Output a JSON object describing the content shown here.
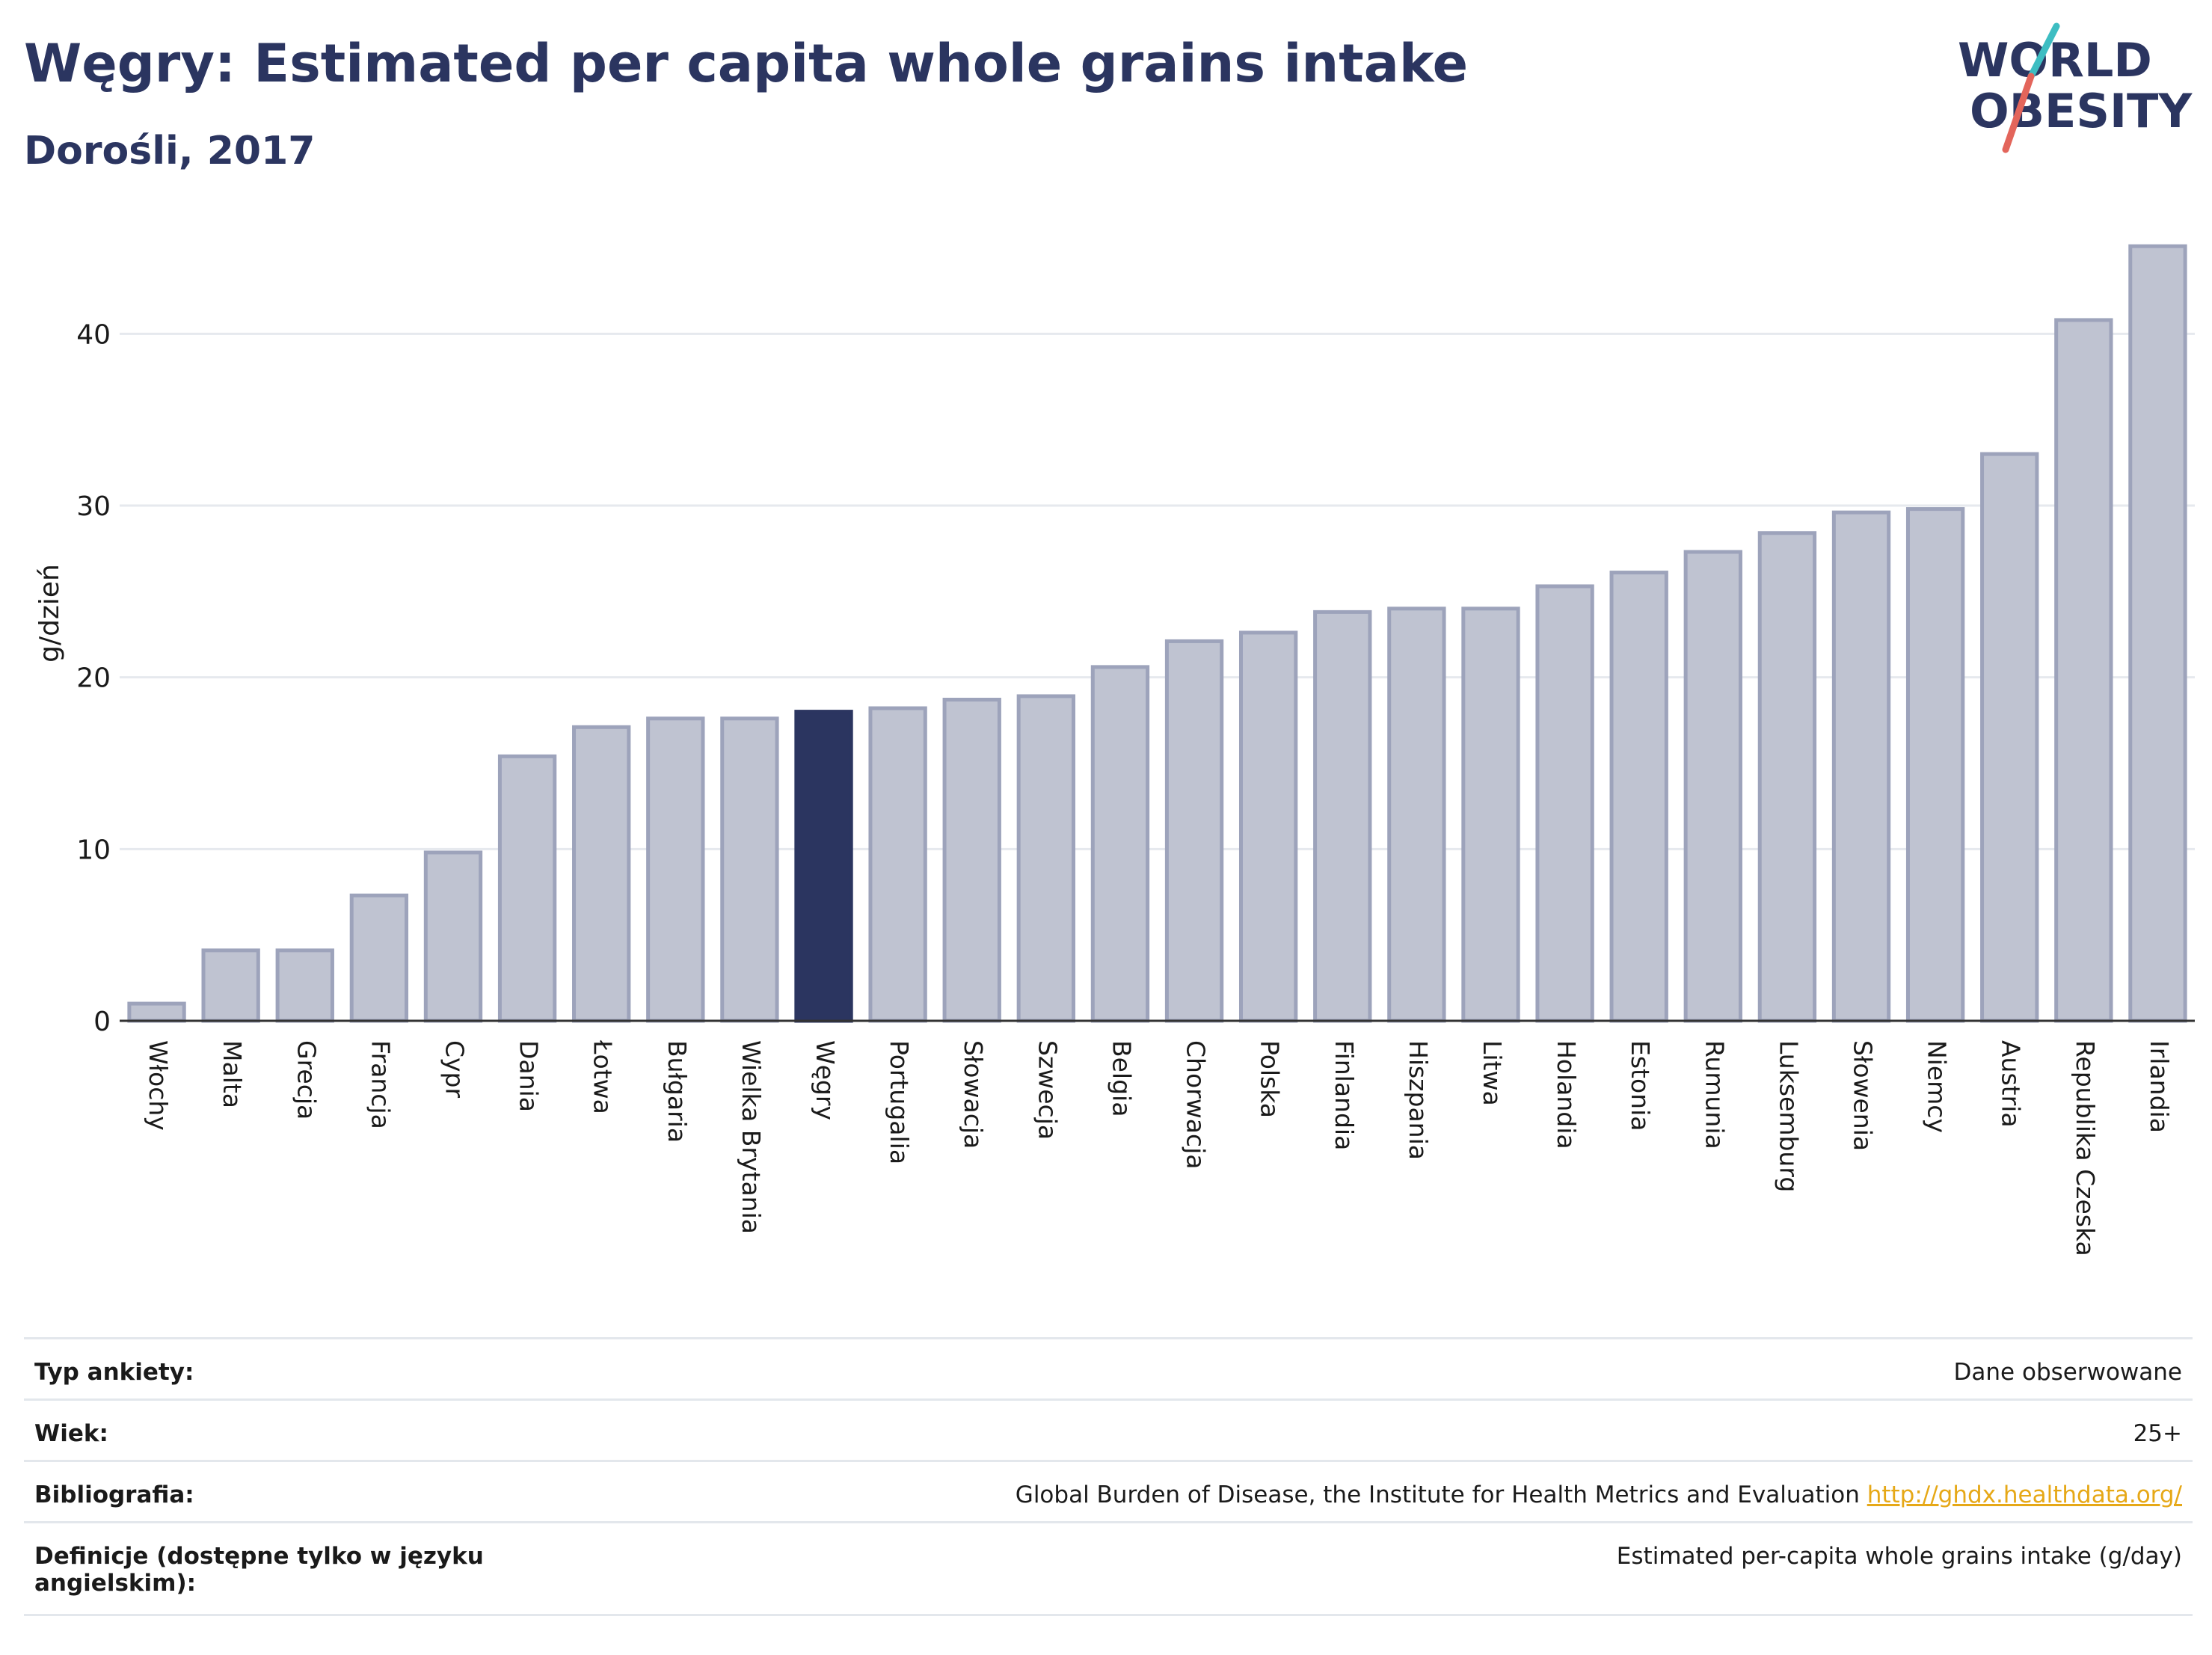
{
  "header": {
    "title": "Węgry: Estimated per capita whole grains intake",
    "subtitle": "Dorośli, 2017"
  },
  "logo": {
    "line1": "WORLD",
    "line2": "OBESITY"
  },
  "colors": {
    "bar": "#bfc3d1",
    "bar_stroke": "#9da3bb",
    "highlight": "#2b3560",
    "grid": "#e6e9ee",
    "axis": "#333333"
  },
  "chart_data": {
    "type": "bar",
    "ylabel": "g/dzień",
    "ylim": [
      0,
      45.5
    ],
    "yticks": [
      0,
      10,
      20,
      30,
      40
    ],
    "grid": true,
    "highlight": "Węgry",
    "categories": [
      "Włochy",
      "Malta",
      "Grecja",
      "Francja",
      "Cypr",
      "Dania",
      "Łotwa",
      "Bułgaria",
      "Wielka Brytania",
      "Węgry",
      "Portugalia",
      "Słowacja",
      "Szwecja",
      "Belgia",
      "Chorwacja",
      "Polska",
      "Finlandia",
      "Hiszpania",
      "Litwa",
      "Holandia",
      "Estonia",
      "Rumunia",
      "Luksemburg",
      "Słowenia",
      "Niemcy",
      "Austria",
      "Republika Czeska",
      "Irlandia"
    ],
    "values": [
      1.0,
      4.1,
      4.1,
      7.3,
      9.8,
      15.4,
      17.1,
      17.6,
      17.6,
      18.0,
      18.2,
      18.7,
      18.9,
      20.6,
      22.1,
      22.6,
      23.8,
      24.0,
      24.0,
      25.3,
      26.1,
      27.3,
      28.4,
      29.6,
      29.8,
      33.0,
      40.8,
      45.1
    ]
  },
  "meta": {
    "survey_type_label": "Typ ankiety:",
    "survey_type_value": "Dane obserwowane",
    "age_label": "Wiek:",
    "age_value": "25+",
    "bibliography_label": "Bibliografia:",
    "bibliography_value": "Global Burden of Disease, the Institute for Health Metrics and Evaluation",
    "bibliography_link": "http://ghdx.healthdata.org/",
    "definitions_label": "Definicje (dostępne tylko w języku angielskim):",
    "definitions_value": "Estimated per-capita whole grains intake (g/day)"
  }
}
